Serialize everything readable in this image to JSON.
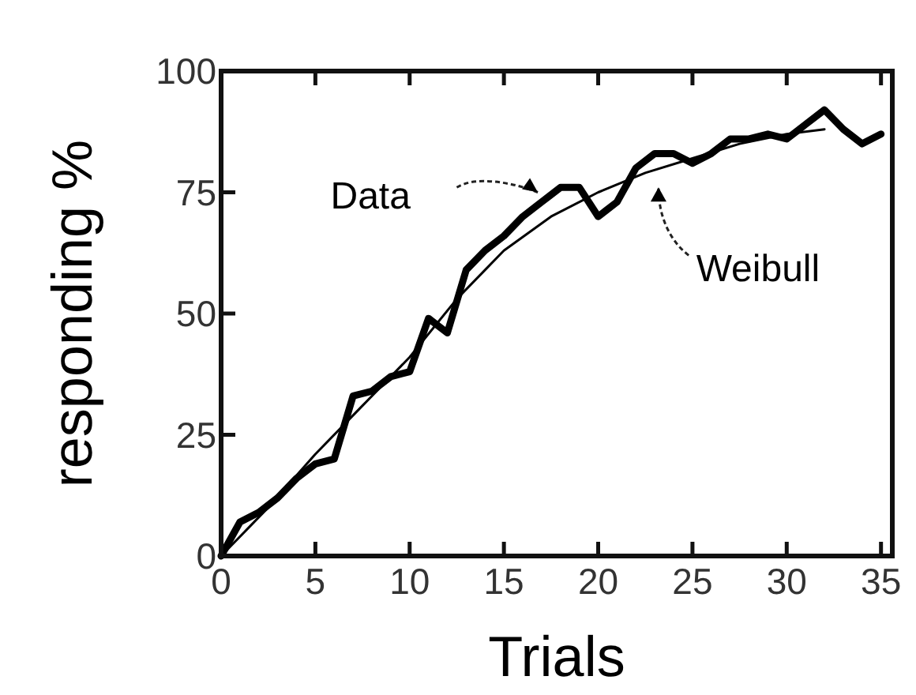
{
  "chart_data": {
    "type": "line",
    "xlabel": "Trials",
    "ylabel": "responding %",
    "xlim": [
      0,
      35.6
    ],
    "ylim": [
      0,
      100
    ],
    "xticks": [
      0,
      5,
      10,
      15,
      20,
      25,
      30,
      35
    ],
    "yticks": [
      0,
      25,
      50,
      75,
      100
    ],
    "grid": false,
    "marker": "none",
    "series": [
      {
        "name": "Data",
        "color": "#000000",
        "x": [
          0,
          1,
          2,
          3,
          4,
          5,
          6,
          7,
          8,
          9,
          10,
          11,
          12,
          13,
          14,
          15,
          16,
          17,
          18,
          19,
          20,
          21,
          22,
          23,
          24,
          25,
          26,
          27,
          28,
          29,
          30,
          31,
          32,
          33,
          34,
          35
        ],
        "values": [
          0,
          7,
          9,
          12,
          16,
          19,
          20,
          33,
          34,
          37,
          38,
          49,
          46,
          59,
          63,
          66,
          70,
          73,
          76,
          76,
          70,
          73,
          80,
          83,
          83,
          81,
          83,
          86,
          86,
          87,
          86,
          89,
          92,
          88,
          85,
          87
        ]
      },
      {
        "name": "Weibull",
        "color": "#000000",
        "x": [
          0,
          2.5,
          5,
          7.5,
          10,
          12.5,
          15,
          17.5,
          20,
          22.5,
          25,
          27.5,
          30,
          32
        ],
        "values": [
          0,
          10,
          21,
          31,
          41,
          53,
          63,
          70,
          75,
          79,
          82,
          85,
          87,
          88
        ]
      }
    ]
  }
}
